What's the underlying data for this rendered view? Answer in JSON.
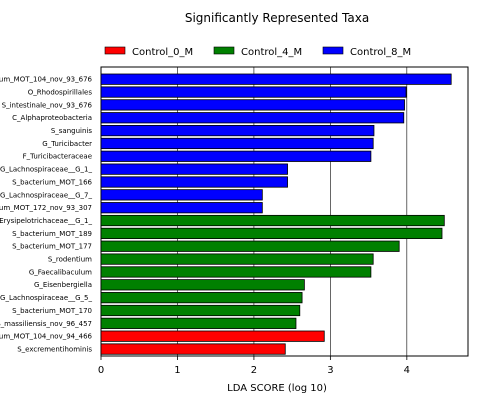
{
  "chart_data": {
    "type": "bar",
    "orientation": "horizontal",
    "title": "Significantly Represented Taxa",
    "xlabel": "LDA SCORE (log 10)",
    "ylabel": "",
    "xlim": [
      0,
      4.8
    ],
    "xticks": [
      0,
      1,
      2,
      3,
      4
    ],
    "grid": true,
    "legend_position": "top",
    "series": [
      {
        "name": "Control_0_M",
        "color": "#ff0000"
      },
      {
        "name": "Control_4_M",
        "color": "#008000"
      },
      {
        "name": "Control_8_M",
        "color": "#0000ff"
      }
    ],
    "bars": [
      {
        "label": "um_MOT_104_nov_93_676",
        "value": 4.58,
        "group": "Control_8_M"
      },
      {
        "label": "O_Rhodospirillales",
        "value": 3.99,
        "group": "Control_8_M"
      },
      {
        "label": "S_intestinale_nov_93_676",
        "value": 3.97,
        "group": "Control_8_M"
      },
      {
        "label": "C_Alphaproteobacteria",
        "value": 3.96,
        "group": "Control_8_M"
      },
      {
        "label": "S_sanguinis",
        "value": 3.57,
        "group": "Control_8_M"
      },
      {
        "label": "G_Turicibacter",
        "value": 3.56,
        "group": "Control_8_M"
      },
      {
        "label": "F_Turicibacteraceae",
        "value": 3.53,
        "group": "Control_8_M"
      },
      {
        "label": "G_Lachnospiraceae__G_1_",
        "value": 2.44,
        "group": "Control_8_M"
      },
      {
        "label": "S_bacterium_MOT_166",
        "value": 2.44,
        "group": "Control_8_M"
      },
      {
        "label": "G_Lachnospiraceae__G_7_",
        "value": 2.11,
        "group": "Control_8_M"
      },
      {
        "label": "um_MOT_172_nov_93_307",
        "value": 2.11,
        "group": "Control_8_M"
      },
      {
        "label": "Erysipelotrichaceae__G_1_",
        "value": 4.49,
        "group": "Control_4_M"
      },
      {
        "label": "S_bacterium_MOT_189",
        "value": 4.46,
        "group": "Control_4_M"
      },
      {
        "label": "S_bacterium_MOT_177",
        "value": 3.9,
        "group": "Control_4_M"
      },
      {
        "label": "S_rodentium",
        "value": 3.56,
        "group": "Control_4_M"
      },
      {
        "label": "G_Faecalibaculum",
        "value": 3.53,
        "group": "Control_4_M"
      },
      {
        "label": "G_Eisenbergiella",
        "value": 2.66,
        "group": "Control_4_M"
      },
      {
        "label": "G_Lachnospiraceae__G_5_",
        "value": 2.63,
        "group": "Control_4_M"
      },
      {
        "label": "S_bacterium_MOT_170",
        "value": 2.6,
        "group": "Control_4_M"
      },
      {
        "label": "S_massiliensis_nov_96_457",
        "value": 2.55,
        "group": "Control_4_M"
      },
      {
        "label": "um_MOT_104_nov_94_466",
        "value": 2.92,
        "group": "Control_0_M"
      },
      {
        "label": "S_excrementihominis",
        "value": 2.41,
        "group": "Control_0_M"
      }
    ]
  }
}
